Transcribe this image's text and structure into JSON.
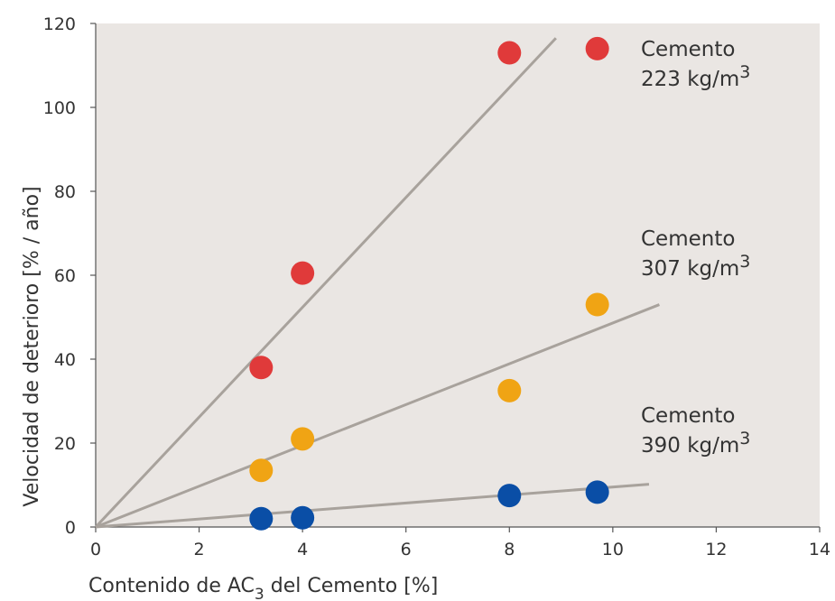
{
  "chart_data": {
    "type": "scatter",
    "xlabel": {
      "prefix": "Contenido de AC",
      "sub": "3",
      "suffix": " del Cemento [%]"
    },
    "ylabel": "Velocidad de deterioro  [% / año]",
    "xlim": [
      0,
      14
    ],
    "ylim": [
      0,
      120
    ],
    "xticks": [
      0,
      2,
      4,
      6,
      8,
      10,
      12,
      14
    ],
    "yticks": [
      0,
      20,
      40,
      60,
      80,
      100,
      120
    ],
    "grid": false,
    "plot_background": "#eae6e3",
    "trendline_color": "#a8a29c",
    "series": [
      {
        "name_line1": "Cemento",
        "name_line2": "223 kg/m",
        "name_sup": "3",
        "color": "#e03a3a",
        "points": [
          [
            3.2,
            38
          ],
          [
            4.0,
            60.5
          ],
          [
            8.0,
            113
          ],
          [
            9.7,
            114
          ]
        ],
        "trend": [
          [
            0,
            0
          ],
          [
            8.9,
            116.5
          ]
        ]
      },
      {
        "name_line1": "Cemento",
        "name_line2": "307 kg/m",
        "name_sup": "3",
        "color": "#f0a414",
        "points": [
          [
            3.2,
            13.5
          ],
          [
            4.0,
            21
          ],
          [
            8.0,
            32.5
          ],
          [
            9.7,
            53
          ]
        ],
        "trend": [
          [
            0,
            0
          ],
          [
            10.9,
            53
          ]
        ]
      },
      {
        "name_line1": "Cemento",
        "name_line2": "390 kg/m",
        "name_sup": "3",
        "color": "#0a4ea6",
        "points": [
          [
            3.2,
            2
          ],
          [
            4.0,
            2.2
          ],
          [
            8.0,
            7.5
          ],
          [
            9.7,
            8.3
          ]
        ],
        "trend": [
          [
            0,
            0
          ],
          [
            10.7,
            10.2
          ]
        ]
      }
    ]
  }
}
